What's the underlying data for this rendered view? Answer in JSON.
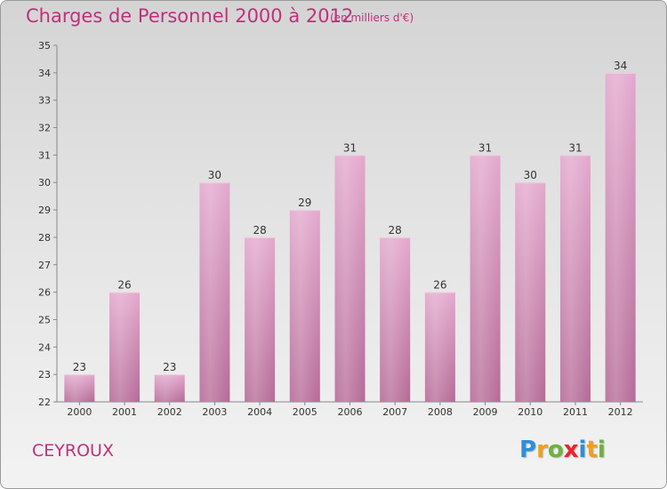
{
  "header": {
    "title": "Charges de Personnel 2000 à 2012",
    "subtitle": "(en milliers d'€)"
  },
  "footer": {
    "commune": "CEYROUX",
    "logo_letters": [
      "P",
      "r",
      "o",
      "x",
      "i",
      "t",
      "i"
    ],
    "logo_colors": [
      "#2e8fd8",
      "#f0a01e",
      "#6cb33e",
      "#e8242c",
      "#2e8fd8",
      "#f0a01e",
      "#6cb33e"
    ]
  },
  "chart_data": {
    "type": "bar",
    "title": "Charges de Personnel 2000 à 2012",
    "subtitle": "(en milliers d'€)",
    "categories": [
      "2000",
      "2001",
      "2002",
      "2003",
      "2004",
      "2005",
      "2006",
      "2007",
      "2008",
      "2009",
      "2010",
      "2011",
      "2012"
    ],
    "values": [
      23,
      26,
      23,
      30,
      28,
      29,
      31,
      28,
      26,
      31,
      30,
      31,
      34
    ],
    "value_labels": [
      "23",
      "26",
      "23",
      "30",
      "28",
      "29",
      "31",
      "28",
      "26",
      "31",
      "30",
      "31",
      "34"
    ],
    "y_ticks": [
      "22",
      "23",
      "24",
      "25",
      "26",
      "27",
      "28",
      "29",
      "30",
      "31",
      "32",
      "33",
      "34",
      "35"
    ],
    "ylim": [
      22,
      35
    ],
    "grid": false,
    "bar_color": "#d98fba",
    "title_color": "#c0307a"
  }
}
